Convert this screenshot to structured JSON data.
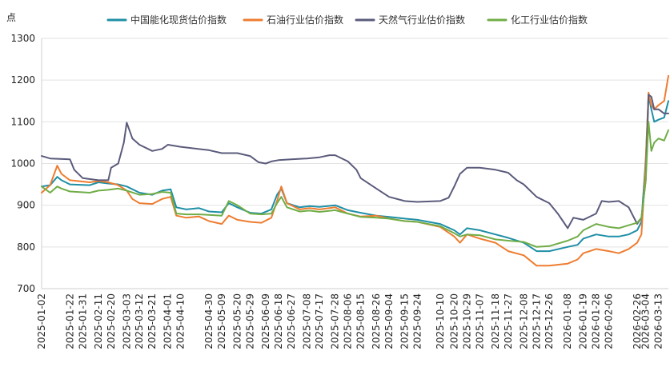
{
  "chart_data": {
    "type": "line",
    "y_unit": "点",
    "ylim": [
      700,
      1300
    ],
    "y_ticks": [
      700,
      800,
      900,
      1000,
      1100,
      1200,
      1300
    ],
    "grid": true,
    "legend_position": "top",
    "x_range": [
      "2025-01-02",
      "2026-03-20"
    ],
    "x_tick_labels": [
      "2025-01-02",
      "2025-01-22",
      "2025-01-31",
      "2025-02-11",
      "2025-02-20",
      "2025-03-03",
      "2025-03-12",
      "2025-03-21",
      "2025-04-01",
      "2025-04-10",
      "2025-04-30",
      "2025-05-09",
      "2025-05-20",
      "2025-05-29",
      "2025-06-09",
      "2025-06-18",
      "2025-06-27",
      "2025-07-08",
      "2025-07-17",
      "2025-07-28",
      "2025-08-06",
      "2025-08-15",
      "2025-08-26",
      "2025-09-04",
      "2025-09-15",
      "2025-09-24",
      "2025-10-10",
      "2025-10-20",
      "2025-10-29",
      "2025-11-07",
      "2025-11-18",
      "2025-11-27",
      "2025-12-08",
      "2025-12-17",
      "2025-12-26",
      "2026-01-08",
      "2026-01-19",
      "2026-01-28",
      "2026-02-06",
      "2026-02-26",
      "2026-03-04",
      "2026-03-13"
    ],
    "series": [
      {
        "name": "中国能化现货估价指数",
        "color": "#1f8fa6",
        "points": [
          [
            "2025-01-02",
            945
          ],
          [
            "2025-01-08",
            948
          ],
          [
            "2025-01-13",
            968
          ],
          [
            "2025-01-16",
            960
          ],
          [
            "2025-01-22",
            950
          ],
          [
            "2025-02-05",
            948
          ],
          [
            "2025-02-11",
            955
          ],
          [
            "2025-02-18",
            952
          ],
          [
            "2025-02-25",
            950
          ],
          [
            "2025-03-03",
            945
          ],
          [
            "2025-03-12",
            930
          ],
          [
            "2025-03-21",
            925
          ],
          [
            "2025-03-28",
            935
          ],
          [
            "2025-04-03",
            938
          ],
          [
            "2025-04-07",
            895
          ],
          [
            "2025-04-14",
            890
          ],
          [
            "2025-04-23",
            893
          ],
          [
            "2025-04-30",
            885
          ],
          [
            "2025-05-09",
            883
          ],
          [
            "2025-05-14",
            905
          ],
          [
            "2025-05-20",
            895
          ],
          [
            "2025-05-29",
            882
          ],
          [
            "2025-06-06",
            880
          ],
          [
            "2025-06-13",
            890
          ],
          [
            "2025-06-17",
            925
          ],
          [
            "2025-06-20",
            940
          ],
          [
            "2025-06-24",
            905
          ],
          [
            "2025-07-03",
            895
          ],
          [
            "2025-07-10",
            898
          ],
          [
            "2025-07-17",
            896
          ],
          [
            "2025-07-28",
            900
          ],
          [
            "2025-08-06",
            888
          ],
          [
            "2025-08-15",
            882
          ],
          [
            "2025-08-26",
            875
          ],
          [
            "2025-09-04",
            872
          ],
          [
            "2025-09-15",
            868
          ],
          [
            "2025-09-24",
            865
          ],
          [
            "2025-10-10",
            855
          ],
          [
            "2025-10-20",
            840
          ],
          [
            "2025-10-24",
            830
          ],
          [
            "2025-10-29",
            845
          ],
          [
            "2025-11-07",
            840
          ],
          [
            "2025-11-18",
            830
          ],
          [
            "2025-11-27",
            822
          ],
          [
            "2025-12-08",
            810
          ],
          [
            "2025-12-17",
            790
          ],
          [
            "2025-12-26",
            790
          ],
          [
            "2026-01-08",
            800
          ],
          [
            "2026-01-15",
            805
          ],
          [
            "2026-01-19",
            820
          ],
          [
            "2026-01-28",
            830
          ],
          [
            "2026-02-06",
            825
          ],
          [
            "2026-02-13",
            825
          ],
          [
            "2026-02-20",
            830
          ],
          [
            "2026-02-26",
            840
          ],
          [
            "2026-03-01",
            860
          ],
          [
            "2026-03-04",
            1010
          ],
          [
            "2026-03-06",
            1165
          ],
          [
            "2026-03-08",
            1130
          ],
          [
            "2026-03-10",
            1100
          ],
          [
            "2026-03-13",
            1105
          ],
          [
            "2026-03-17",
            1110
          ],
          [
            "2026-03-20",
            1150
          ]
        ]
      },
      {
        "name": "石油行业估价指数",
        "color": "#ee7d31",
        "points": [
          [
            "2025-01-02",
            930
          ],
          [
            "2025-01-08",
            948
          ],
          [
            "2025-01-13",
            995
          ],
          [
            "2025-01-16",
            975
          ],
          [
            "2025-01-22",
            960
          ],
          [
            "2025-02-05",
            955
          ],
          [
            "2025-02-11",
            958
          ],
          [
            "2025-02-18",
            955
          ],
          [
            "2025-02-25",
            948
          ],
          [
            "2025-03-03",
            935
          ],
          [
            "2025-03-07",
            915
          ],
          [
            "2025-03-12",
            905
          ],
          [
            "2025-03-21",
            903
          ],
          [
            "2025-03-28",
            915
          ],
          [
            "2025-04-03",
            920
          ],
          [
            "2025-04-07",
            875
          ],
          [
            "2025-04-14",
            870
          ],
          [
            "2025-04-23",
            873
          ],
          [
            "2025-04-30",
            862
          ],
          [
            "2025-05-09",
            855
          ],
          [
            "2025-05-14",
            875
          ],
          [
            "2025-05-20",
            865
          ],
          [
            "2025-05-29",
            860
          ],
          [
            "2025-06-06",
            858
          ],
          [
            "2025-06-13",
            870
          ],
          [
            "2025-06-17",
            910
          ],
          [
            "2025-06-20",
            945
          ],
          [
            "2025-06-24",
            905
          ],
          [
            "2025-07-03",
            890
          ],
          [
            "2025-07-10",
            893
          ],
          [
            "2025-07-17",
            890
          ],
          [
            "2025-07-28",
            895
          ],
          [
            "2025-08-06",
            880
          ],
          [
            "2025-08-15",
            873
          ],
          [
            "2025-08-26",
            875
          ],
          [
            "2025-09-04",
            868
          ],
          [
            "2025-09-15",
            862
          ],
          [
            "2025-09-24",
            860
          ],
          [
            "2025-10-10",
            848
          ],
          [
            "2025-10-20",
            825
          ],
          [
            "2025-10-24",
            810
          ],
          [
            "2025-10-29",
            830
          ],
          [
            "2025-11-07",
            820
          ],
          [
            "2025-11-18",
            810
          ],
          [
            "2025-11-27",
            790
          ],
          [
            "2025-12-08",
            780
          ],
          [
            "2025-12-17",
            755
          ],
          [
            "2025-12-26",
            755
          ],
          [
            "2026-01-08",
            760
          ],
          [
            "2026-01-15",
            770
          ],
          [
            "2026-01-19",
            785
          ],
          [
            "2026-01-28",
            795
          ],
          [
            "2026-02-06",
            790
          ],
          [
            "2026-02-13",
            785
          ],
          [
            "2026-02-20",
            795
          ],
          [
            "2026-02-26",
            810
          ],
          [
            "2026-03-01",
            830
          ],
          [
            "2026-03-04",
            1000
          ],
          [
            "2026-03-06",
            1170
          ],
          [
            "2026-03-08",
            1140
          ],
          [
            "2026-03-10",
            1130
          ],
          [
            "2026-03-13",
            1140
          ],
          [
            "2026-03-17",
            1150
          ],
          [
            "2026-03-20",
            1210
          ]
        ]
      },
      {
        "name": "天然气行业估价指数",
        "color": "#5b5b7c",
        "points": [
          [
            "2025-01-02",
            1018
          ],
          [
            "2025-01-08",
            1012
          ],
          [
            "2025-01-22",
            1010
          ],
          [
            "2025-01-25",
            985
          ],
          [
            "2025-01-31",
            965
          ],
          [
            "2025-02-11",
            960
          ],
          [
            "2025-02-18",
            960
          ],
          [
            "2025-02-20",
            990
          ],
          [
            "2025-02-25",
            1000
          ],
          [
            "2025-03-01",
            1050
          ],
          [
            "2025-03-03",
            1098
          ],
          [
            "2025-03-07",
            1060
          ],
          [
            "2025-03-12",
            1045
          ],
          [
            "2025-03-21",
            1030
          ],
          [
            "2025-03-28",
            1035
          ],
          [
            "2025-04-01",
            1045
          ],
          [
            "2025-04-10",
            1040
          ],
          [
            "2025-04-30",
            1032
          ],
          [
            "2025-05-09",
            1025
          ],
          [
            "2025-05-20",
            1025
          ],
          [
            "2025-05-29",
            1018
          ],
          [
            "2025-06-04",
            1003
          ],
          [
            "2025-06-09",
            1000
          ],
          [
            "2025-06-13",
            1005
          ],
          [
            "2025-06-18",
            1008
          ],
          [
            "2025-06-27",
            1010
          ],
          [
            "2025-07-08",
            1012
          ],
          [
            "2025-07-17",
            1015
          ],
          [
            "2025-07-24",
            1020
          ],
          [
            "2025-07-28",
            1020
          ],
          [
            "2025-08-06",
            1005
          ],
          [
            "2025-08-12",
            985
          ],
          [
            "2025-08-15",
            965
          ],
          [
            "2025-08-26",
            940
          ],
          [
            "2025-09-04",
            920
          ],
          [
            "2025-09-15",
            910
          ],
          [
            "2025-09-24",
            908
          ],
          [
            "2025-10-10",
            910
          ],
          [
            "2025-10-16",
            918
          ],
          [
            "2025-10-20",
            945
          ],
          [
            "2025-10-24",
            975
          ],
          [
            "2025-10-29",
            990
          ],
          [
            "2025-11-07",
            990
          ],
          [
            "2025-11-18",
            985
          ],
          [
            "2025-11-27",
            978
          ],
          [
            "2025-12-03",
            960
          ],
          [
            "2025-12-08",
            950
          ],
          [
            "2025-12-17",
            920
          ],
          [
            "2025-12-26",
            905
          ],
          [
            "2026-01-01",
            880
          ],
          [
            "2026-01-05",
            860
          ],
          [
            "2026-01-08",
            845
          ],
          [
            "2026-01-12",
            870
          ],
          [
            "2026-01-19",
            865
          ],
          [
            "2026-01-28",
            880
          ],
          [
            "2026-02-01",
            910
          ],
          [
            "2026-02-06",
            908
          ],
          [
            "2026-02-13",
            910
          ],
          [
            "2026-02-20",
            895
          ],
          [
            "2026-02-26",
            855
          ],
          [
            "2026-03-01",
            870
          ],
          [
            "2026-03-04",
            960
          ],
          [
            "2026-03-06",
            1165
          ],
          [
            "2026-03-08",
            1160
          ],
          [
            "2026-03-10",
            1130
          ],
          [
            "2026-03-13",
            1130
          ],
          [
            "2026-03-17",
            1120
          ],
          [
            "2026-03-20",
            1120
          ]
        ]
      },
      {
        "name": "化工行业估价指数",
        "color": "#70ad47",
        "points": [
          [
            "2025-01-02",
            945
          ],
          [
            "2025-01-08",
            930
          ],
          [
            "2025-01-13",
            945
          ],
          [
            "2025-01-16",
            940
          ],
          [
            "2025-01-22",
            933
          ],
          [
            "2025-02-05",
            930
          ],
          [
            "2025-02-11",
            935
          ],
          [
            "2025-02-18",
            937
          ],
          [
            "2025-02-25",
            940
          ],
          [
            "2025-03-03",
            935
          ],
          [
            "2025-03-12",
            925
          ],
          [
            "2025-03-21",
            927
          ],
          [
            "2025-03-28",
            932
          ],
          [
            "2025-04-03",
            930
          ],
          [
            "2025-04-07",
            880
          ],
          [
            "2025-04-14",
            878
          ],
          [
            "2025-04-23",
            878
          ],
          [
            "2025-04-30",
            877
          ],
          [
            "2025-05-09",
            875
          ],
          [
            "2025-05-14",
            910
          ],
          [
            "2025-05-20",
            900
          ],
          [
            "2025-05-29",
            880
          ],
          [
            "2025-06-06",
            878
          ],
          [
            "2025-06-13",
            880
          ],
          [
            "2025-06-17",
            905
          ],
          [
            "2025-06-20",
            920
          ],
          [
            "2025-06-24",
            895
          ],
          [
            "2025-07-03",
            885
          ],
          [
            "2025-07-10",
            887
          ],
          [
            "2025-07-17",
            884
          ],
          [
            "2025-07-28",
            888
          ],
          [
            "2025-08-06",
            880
          ],
          [
            "2025-08-15",
            872
          ],
          [
            "2025-08-26",
            870
          ],
          [
            "2025-09-04",
            868
          ],
          [
            "2025-09-15",
            862
          ],
          [
            "2025-09-24",
            860
          ],
          [
            "2025-10-10",
            850
          ],
          [
            "2025-10-20",
            833
          ],
          [
            "2025-10-24",
            825
          ],
          [
            "2025-10-29",
            830
          ],
          [
            "2025-11-07",
            828
          ],
          [
            "2025-11-18",
            818
          ],
          [
            "2025-11-27",
            815
          ],
          [
            "2025-12-08",
            812
          ],
          [
            "2025-12-17",
            800
          ],
          [
            "2025-12-26",
            802
          ],
          [
            "2026-01-08",
            815
          ],
          [
            "2026-01-15",
            825
          ],
          [
            "2026-01-19",
            840
          ],
          [
            "2026-01-28",
            855
          ],
          [
            "2026-02-06",
            848
          ],
          [
            "2026-02-13",
            845
          ],
          [
            "2026-02-20",
            852
          ],
          [
            "2026-02-26",
            858
          ],
          [
            "2026-03-01",
            870
          ],
          [
            "2026-03-04",
            960
          ],
          [
            "2026-03-06",
            1100
          ],
          [
            "2026-03-08",
            1030
          ],
          [
            "2026-03-10",
            1050
          ],
          [
            "2026-03-13",
            1060
          ],
          [
            "2026-03-17",
            1055
          ],
          [
            "2026-03-20",
            1080
          ]
        ]
      }
    ]
  }
}
